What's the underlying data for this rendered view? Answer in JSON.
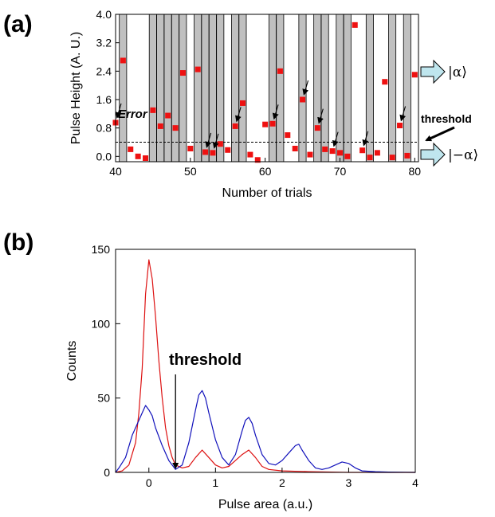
{
  "colors": {
    "bar": "#c0c0c0",
    "marker": "#ee1111",
    "red": "#dd1111",
    "blue": "#1111bb",
    "arrow_fill": "#bfe6ee"
  },
  "chart_data": [
    {
      "panel": "(a)",
      "type": "bar",
      "xlabel": "Number of trials",
      "ylabel": "Pulse Height (A. U.)",
      "xlim": [
        40,
        80.5
      ],
      "ylim": [
        -0.15,
        4.0
      ],
      "xticks": [
        40,
        50,
        60,
        70,
        80
      ],
      "yticks": [
        0.0,
        0.8,
        1.6,
        2.4,
        3.2,
        4.0
      ],
      "ytick_labels": [
        "0.0",
        "0.8",
        "1.6",
        "2.4",
        "3.2",
        "4.0"
      ],
      "threshold": 0.4,
      "bars_at_trials": [
        41,
        45,
        46,
        47,
        48,
        49,
        51,
        52,
        53,
        54,
        56,
        57,
        61,
        62,
        65,
        67,
        68,
        70,
        71,
        74,
        77,
        79
      ],
      "bar_value": 4.0,
      "points": {
        "x": [
          40,
          41,
          42,
          43,
          44,
          45,
          46,
          47,
          48,
          49,
          50,
          51,
          52,
          53,
          54,
          55,
          56,
          57,
          58,
          59,
          60,
          61,
          62,
          63,
          64,
          65,
          66,
          67,
          68,
          69,
          70,
          71,
          72,
          73,
          74,
          75,
          76,
          77,
          78,
          79,
          80
        ],
        "y": [
          0.95,
          2.7,
          0.2,
          0.0,
          -0.05,
          1.3,
          0.85,
          1.15,
          0.8,
          2.35,
          0.22,
          2.45,
          0.12,
          0.1,
          0.35,
          0.18,
          0.85,
          1.5,
          0.05,
          -0.1,
          0.9,
          0.92,
          2.4,
          0.6,
          0.22,
          1.6,
          0.05,
          0.8,
          0.2,
          0.15,
          0.1,
          0.0,
          3.7,
          0.17,
          -0.03,
          0.1,
          2.1,
          -0.03,
          0.87,
          0.02,
          2.3
        ]
      },
      "error_marks_at": [
        40,
        52,
        53,
        56,
        61,
        65,
        67,
        69,
        73,
        78
      ],
      "annotations": {
        "error": "Error",
        "threshold": "threshold",
        "state_plus": "|α⟩",
        "state_minus": "|−α⟩"
      }
    },
    {
      "panel": "(b)",
      "type": "line",
      "xlabel": "Pulse area (a.u.)",
      "ylabel": "Counts",
      "xlim": [
        -0.5,
        4.0
      ],
      "ylim": [
        0,
        150
      ],
      "xticks": [
        0,
        1,
        2,
        3,
        4
      ],
      "yticks": [
        0,
        50,
        100,
        150
      ],
      "threshold_x": 0.4,
      "threshold_label": "threshold",
      "series": [
        {
          "color": "red",
          "x": [
            -0.5,
            -0.4,
            -0.3,
            -0.2,
            -0.15,
            -0.1,
            -0.05,
            0.0,
            0.05,
            0.1,
            0.15,
            0.2,
            0.25,
            0.3,
            0.35,
            0.4,
            0.5,
            0.6,
            0.7,
            0.8,
            0.9,
            1.0,
            1.1,
            1.2,
            1.3,
            1.4,
            1.5,
            1.6,
            1.7,
            1.8,
            2.0,
            2.4,
            3.0,
            4.0
          ],
          "y": [
            0,
            1,
            5,
            20,
            40,
            70,
            120,
            143,
            130,
            105,
            75,
            50,
            30,
            18,
            10,
            5,
            3,
            4,
            10,
            15,
            10,
            5,
            3,
            4,
            8,
            12,
            15,
            10,
            4,
            2,
            1,
            0.5,
            0,
            0
          ]
        },
        {
          "color": "blue",
          "x": [
            -0.5,
            -0.45,
            -0.35,
            -0.25,
            -0.15,
            -0.1,
            -0.05,
            0.0,
            0.05,
            0.1,
            0.2,
            0.3,
            0.4,
            0.5,
            0.6,
            0.7,
            0.75,
            0.8,
            0.85,
            0.9,
            1.0,
            1.1,
            1.2,
            1.3,
            1.4,
            1.45,
            1.5,
            1.55,
            1.6,
            1.7,
            1.8,
            1.9,
            2.0,
            2.1,
            2.2,
            2.25,
            2.3,
            2.4,
            2.5,
            2.6,
            2.7,
            2.8,
            2.9,
            3.0,
            3.1,
            3.2,
            3.4,
            3.6,
            4.0
          ],
          "y": [
            0,
            3,
            10,
            25,
            35,
            40,
            45,
            42,
            38,
            30,
            18,
            8,
            2,
            5,
            20,
            42,
            52,
            55,
            50,
            40,
            22,
            10,
            5,
            12,
            28,
            35,
            37,
            33,
            25,
            12,
            6,
            5,
            8,
            13,
            18,
            19,
            15,
            8,
            3,
            2,
            3,
            5,
            7,
            6,
            3,
            1,
            0.5,
            0.2,
            0
          ]
        }
      ]
    }
  ]
}
